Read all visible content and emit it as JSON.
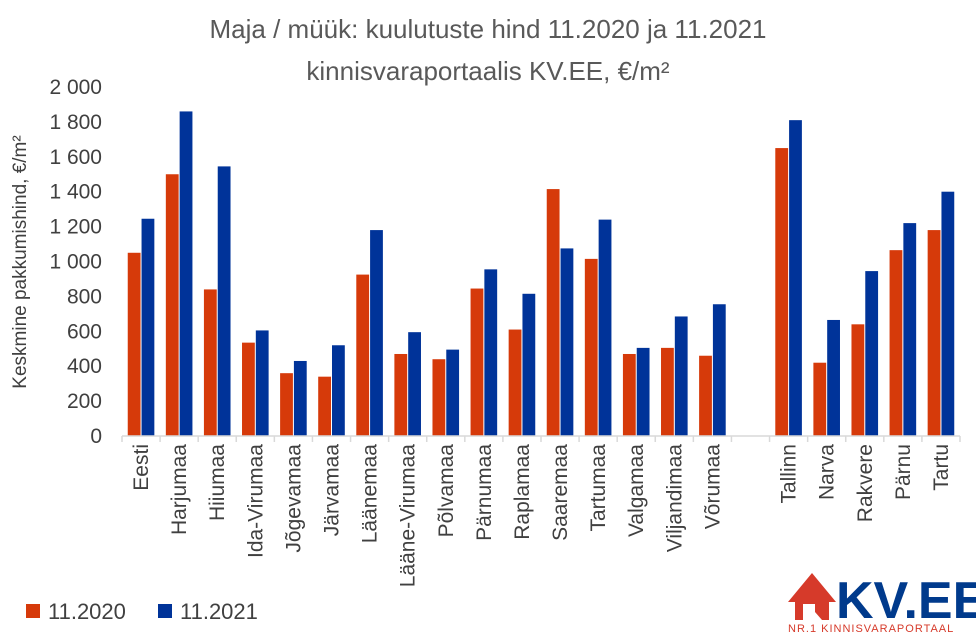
{
  "chart_data": {
    "type": "bar",
    "title": [
      "Maja / müük: kuulutuste hind 11.2020 ja 11.2021",
      "kinnisvaraportaalis KV.EE, €/m²"
    ],
    "ylabel": "Keskmine pakkumishind, €/m²",
    "xlabel": "",
    "ylim": [
      0,
      2000
    ],
    "yticks": [
      0,
      200,
      400,
      600,
      800,
      1000,
      1200,
      1400,
      1600,
      1800,
      2000
    ],
    "ytick_labels": [
      "0",
      "200",
      "400",
      "600",
      "800",
      "1 000",
      "1 200",
      "1 400",
      "1 600",
      "1 800",
      "2 000"
    ],
    "grid": false,
    "legend_position": "bottom-left",
    "categories": [
      "Eesti",
      "Harjumaa",
      "Hiiumaa",
      "Ida-Virumaa",
      "Jõgevamaa",
      "Järvamaa",
      "Läänemaa",
      "Lääne-Virumaa",
      "Põlvamaa",
      "Pärnumaa",
      "Raplamaa",
      "Saaremaa",
      "Tartumaa",
      "Valgamaa",
      "Viljandimaa",
      "Võrumaa",
      "",
      "Tallinn",
      "Narva",
      "Rakvere",
      "Pärnu",
      "Tartu"
    ],
    "series": [
      {
        "name": "11.2020",
        "color": "#d63a0a",
        "values": [
          1050,
          1500,
          840,
          535,
          360,
          340,
          925,
          470,
          440,
          845,
          610,
          1415,
          1015,
          470,
          505,
          460,
          null,
          1650,
          420,
          640,
          1065,
          1180
        ]
      },
      {
        "name": "11.2021",
        "color": "#003399",
        "values": [
          1245,
          1860,
          1545,
          605,
          430,
          520,
          1180,
          595,
          495,
          955,
          815,
          1075,
          1240,
          505,
          685,
          755,
          null,
          1810,
          665,
          945,
          1220,
          1400
        ]
      }
    ]
  },
  "logo": {
    "text": "KV.EE",
    "tagline": "NR.1 KINNISVARAPORTAAL",
    "icon": "house-icon"
  }
}
